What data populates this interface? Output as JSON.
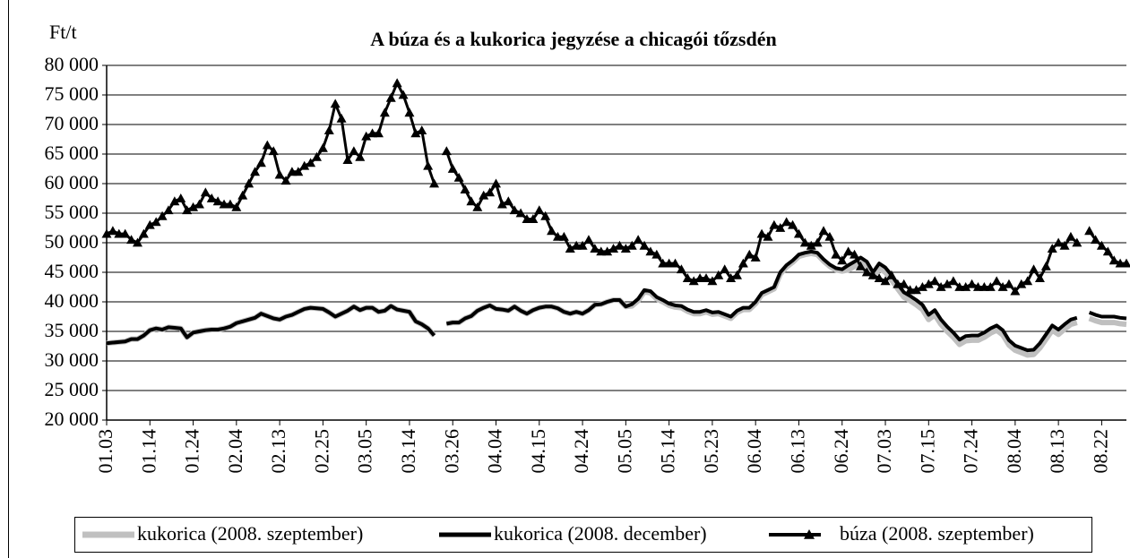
{
  "chart_data": {
    "type": "line",
    "title": "A búza és a kukorica jegyzése a chicagói tőzsdén",
    "y_label": "Ft/t",
    "ylim": [
      20000,
      80000
    ],
    "yticks": [
      {
        "value": 20000,
        "label": "20 000"
      },
      {
        "value": 25000,
        "label": "25 000"
      },
      {
        "value": 30000,
        "label": "30 000"
      },
      {
        "value": 35000,
        "label": "35 000"
      },
      {
        "value": 40000,
        "label": "40 000"
      },
      {
        "value": 45000,
        "label": "45 000"
      },
      {
        "value": 50000,
        "label": "50 000"
      },
      {
        "value": 55000,
        "label": "55 000"
      },
      {
        "value": 60000,
        "label": "60 000"
      },
      {
        "value": 65000,
        "label": "65 000"
      },
      {
        "value": 70000,
        "label": "70 000"
      },
      {
        "value": 75000,
        "label": "75 000"
      },
      {
        "value": 80000,
        "label": "80 000"
      }
    ],
    "grid": true,
    "legend": "bottom",
    "categories": [
      "01.03",
      null,
      null,
      null,
      null,
      null,
      null,
      "01.14",
      null,
      null,
      null,
      null,
      null,
      null,
      "01.24",
      null,
      null,
      null,
      null,
      null,
      null,
      "02.04",
      null,
      null,
      null,
      null,
      null,
      null,
      "02.13",
      null,
      null,
      null,
      null,
      null,
      null,
      "02.25",
      null,
      null,
      null,
      null,
      null,
      null,
      "03.05",
      null,
      null,
      null,
      null,
      null,
      null,
      "03.14",
      null,
      null,
      null,
      null,
      null,
      null,
      "03.26",
      null,
      null,
      null,
      null,
      null,
      null,
      "04.04",
      null,
      null,
      null,
      null,
      null,
      null,
      "04.15",
      null,
      null,
      null,
      null,
      null,
      null,
      "04.24",
      null,
      null,
      null,
      null,
      null,
      null,
      "05.05",
      null,
      null,
      null,
      null,
      null,
      null,
      "05.14",
      null,
      null,
      null,
      null,
      null,
      null,
      "05.23",
      null,
      null,
      null,
      null,
      null,
      null,
      "06.04",
      null,
      null,
      null,
      null,
      null,
      null,
      "06.13",
      null,
      null,
      null,
      null,
      null,
      null,
      "06.24",
      null,
      null,
      null,
      null,
      null,
      null,
      "07.03",
      null,
      null,
      null,
      null,
      null,
      null,
      "07.15",
      null,
      null,
      null,
      null,
      null,
      null,
      "07.24",
      null,
      null,
      null,
      null,
      null,
      null,
      "08.04",
      null,
      null,
      null,
      null,
      null,
      null,
      "08.13",
      null,
      null,
      null,
      null,
      null,
      null,
      "08.22",
      null,
      null,
      null,
      null
    ],
    "series": [
      {
        "name": "kukorica (2008. szeptember)",
        "color": "#c0c0c0",
        "marker": "none",
        "values": [
          33000,
          33100,
          33200,
          33300,
          33700,
          33700,
          34300,
          35200,
          35500,
          35300,
          35700,
          35600,
          35500,
          34000,
          34800,
          35000,
          35200,
          35300,
          35300,
          35500,
          35800,
          36400,
          36700,
          37000,
          37300,
          38000,
          37600,
          37200,
          37000,
          37500,
          37800,
          38300,
          38800,
          39000,
          38900,
          38800,
          38200,
          37500,
          38000,
          38500,
          39200,
          38600,
          39000,
          39000,
          38300,
          38500,
          39300,
          38700,
          38500,
          38300,
          36700,
          36200,
          35500,
          34300,
          null,
          36300,
          36500,
          36500,
          37200,
          37600,
          38500,
          39000,
          39400,
          38800,
          38700,
          38500,
          39200,
          38500,
          38000,
          38600,
          39000,
          39200,
          39200,
          38900,
          38300,
          38000,
          38300,
          38000,
          38600,
          39500,
          39600,
          40000,
          40300,
          40300,
          39200,
          39300,
          40200,
          41700,
          41500,
          40500,
          40000,
          39400,
          39100,
          39000,
          38400,
          38000,
          38000,
          38300,
          37900,
          38000,
          37600,
          37200,
          38200,
          38700,
          38700,
          39700,
          41200,
          41700,
          42200,
          44700,
          45900,
          46700,
          47700,
          48000,
          48200,
          48000,
          46900,
          46000,
          45400,
          45200,
          45400,
          46000,
          46700,
          46000,
          44200,
          45700,
          45000,
          43700,
          42200,
          40800,
          40200,
          39500,
          38700,
          37000,
          37800,
          36200,
          35000,
          34000,
          32800,
          33400,
          33500,
          33500,
          34000,
          34700,
          35200,
          34400,
          32700,
          31800,
          31400,
          31000,
          31100,
          32200,
          33700,
          35200,
          34500,
          35400,
          36200,
          36500,
          null,
          37200,
          36800,
          36500,
          36500,
          36500,
          36300,
          36200
        ]
      },
      {
        "name": "kukorica (2008. december)",
        "color": "#000000",
        "marker": "none",
        "values": [
          33000,
          33100,
          33200,
          33300,
          33700,
          33700,
          34300,
          35200,
          35500,
          35300,
          35700,
          35600,
          35500,
          34000,
          34800,
          35000,
          35200,
          35300,
          35300,
          35500,
          35800,
          36400,
          36700,
          37000,
          37300,
          38000,
          37600,
          37200,
          37000,
          37500,
          37800,
          38300,
          38800,
          39000,
          38900,
          38800,
          38200,
          37500,
          38000,
          38500,
          39200,
          38600,
          39000,
          39000,
          38300,
          38500,
          39300,
          38700,
          38500,
          38300,
          36700,
          36200,
          35500,
          34300,
          null,
          36300,
          36500,
          36500,
          37200,
          37600,
          38500,
          39000,
          39400,
          38800,
          38700,
          38500,
          39200,
          38500,
          38000,
          38600,
          39000,
          39200,
          39200,
          38900,
          38300,
          38000,
          38300,
          38000,
          38600,
          39500,
          39600,
          40000,
          40300,
          40300,
          39200,
          39600,
          40500,
          42000,
          41800,
          40800,
          40300,
          39700,
          39400,
          39300,
          38700,
          38300,
          38300,
          38600,
          38200,
          38300,
          37900,
          37500,
          38500,
          39000,
          39000,
          40000,
          41500,
          42000,
          42500,
          45000,
          46200,
          47000,
          48000,
          48300,
          48500,
          48300,
          47200,
          46300,
          45700,
          45500,
          46200,
          46800,
          47500,
          46800,
          45000,
          46500,
          45800,
          44500,
          43000,
          41600,
          41000,
          40300,
          39500,
          37800,
          38600,
          37000,
          35800,
          34800,
          33600,
          34200,
          34300,
          34300,
          34800,
          35500,
          36000,
          35200,
          33500,
          32600,
          32200,
          31800,
          31900,
          33000,
          34500,
          36000,
          35300,
          36200,
          37000,
          37300,
          null,
          38200,
          37800,
          37500,
          37500,
          37500,
          37300,
          37200
        ]
      },
      {
        "name": "búza (2008. szeptember)",
        "color": "#000000",
        "marker": "triangle",
        "values": [
          51500,
          52000,
          51500,
          51500,
          50500,
          50000,
          51500,
          53000,
          53500,
          54500,
          55500,
          57000,
          57500,
          55500,
          56000,
          56500,
          58500,
          57500,
          57000,
          56500,
          56500,
          56000,
          58000,
          60000,
          62000,
          63500,
          66500,
          65500,
          61500,
          60500,
          62000,
          62000,
          63000,
          63500,
          64500,
          66000,
          69000,
          73500,
          71000,
          64000,
          65500,
          64500,
          68000,
          68500,
          68500,
          72000,
          74500,
          77000,
          75000,
          72000,
          68500,
          69000,
          63000,
          60000,
          null,
          65500,
          62500,
          61000,
          59000,
          57000,
          56000,
          58000,
          58500,
          60000,
          56500,
          57000,
          55500,
          55000,
          54000,
          54000,
          55500,
          54500,
          52000,
          51000,
          51000,
          49000,
          49500,
          49500,
          50500,
          49000,
          48500,
          48500,
          49000,
          49500,
          49000,
          49500,
          50500,
          49500,
          48500,
          48000,
          46500,
          46500,
          46500,
          45500,
          44000,
          43500,
          44000,
          44000,
          43500,
          44500,
          45500,
          44000,
          44500,
          46500,
          48000,
          47500,
          51500,
          51000,
          53000,
          52500,
          53500,
          53000,
          51500,
          50000,
          49500,
          50000,
          52000,
          51000,
          48000,
          47000,
          48500,
          48000,
          46000,
          45000,
          44500,
          44000,
          43500,
          44500,
          43000,
          43000,
          42000,
          42000,
          42500,
          43000,
          43500,
          42500,
          43000,
          43500,
          42500,
          42500,
          43000,
          42500,
          42500,
          42500,
          43500,
          42500,
          43000,
          41800,
          43000,
          43500,
          45500,
          44000,
          46000,
          49000,
          50000,
          49500,
          51000,
          50000,
          null,
          52000,
          50500,
          49500,
          48500,
          47000,
          46500,
          46500
        ]
      }
    ]
  }
}
